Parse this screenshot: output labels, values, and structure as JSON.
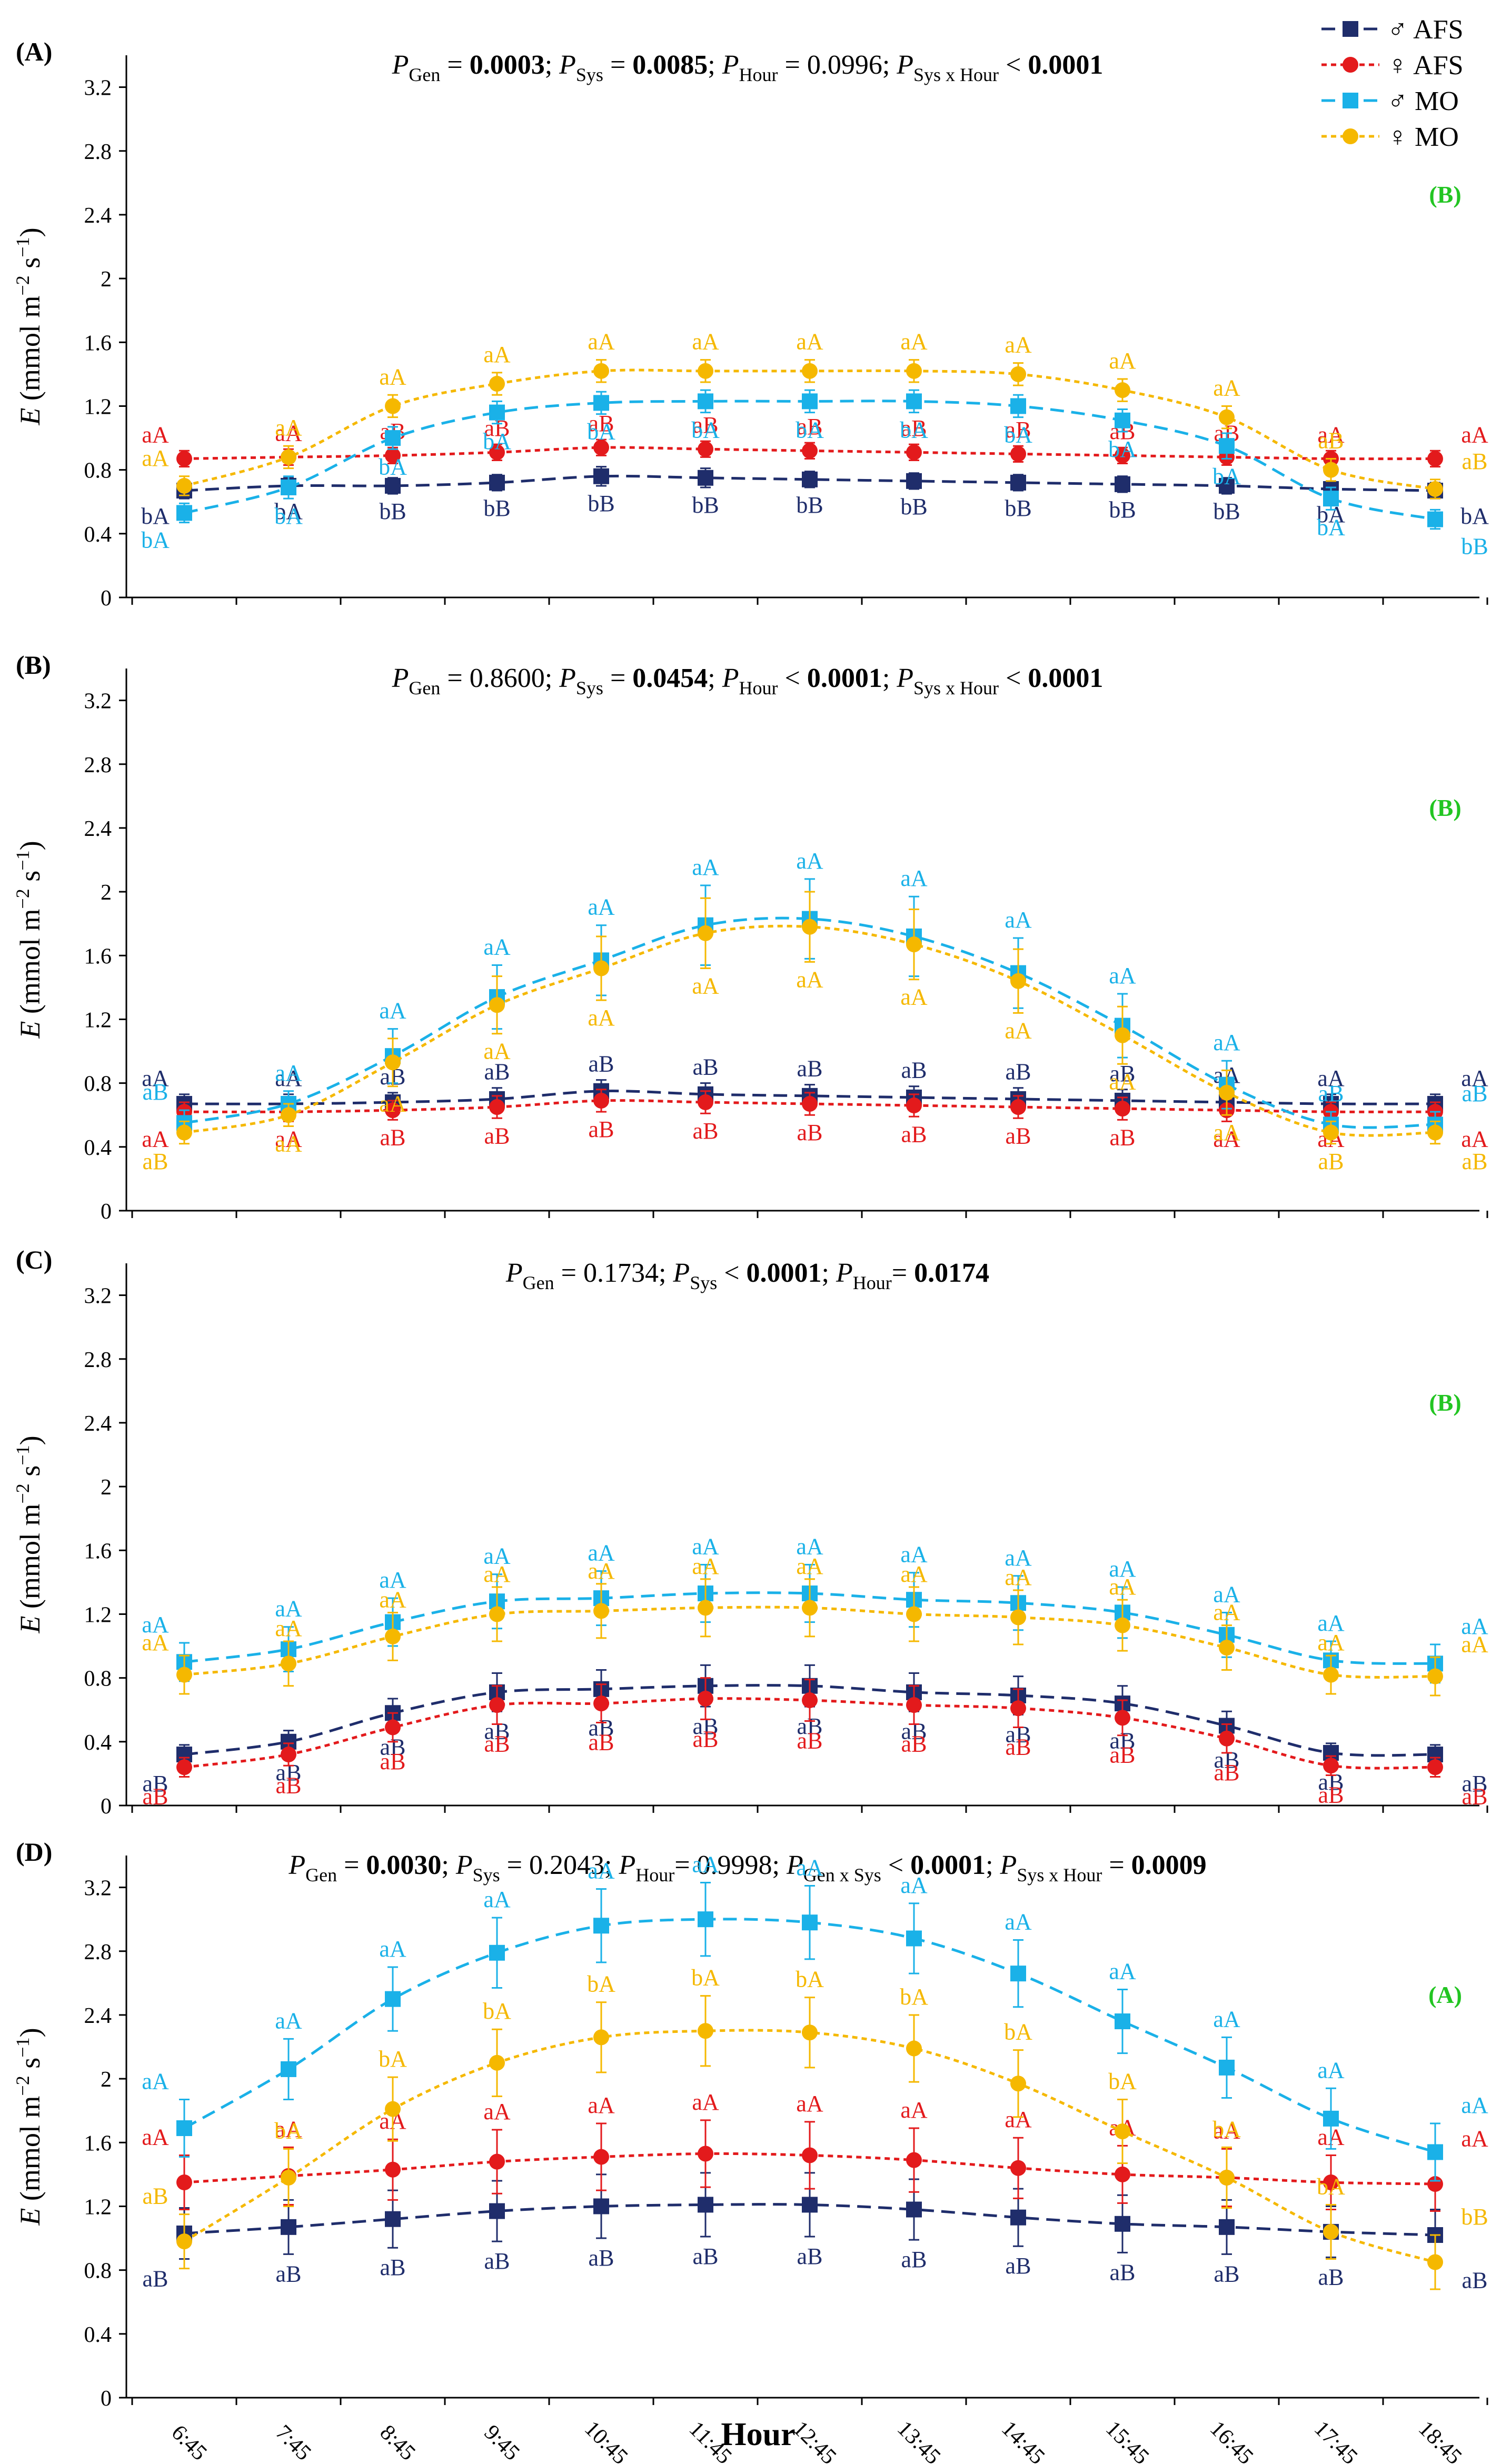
{
  "figure": {
    "xlabel": "Hour",
    "ylabel_main": "E",
    "ylabel_units": "(mmol m",
    "ylabel_exp1": "−2",
    "ylabel_mid": " s",
    "ylabel_exp2": "−1",
    "ylabel_end": ")"
  },
  "colors": {
    "male_afs": "#1f2d6b",
    "female_afs": "#e31a1c",
    "male_mo": "#1ab1e8",
    "female_mo": "#f5b800",
    "badge": "#22c522"
  },
  "legend": [
    {
      "symbol": "♂",
      "label": "AFS"
    },
    {
      "symbol": "♀",
      "label": "AFS"
    },
    {
      "symbol": "♂",
      "label": "MO"
    },
    {
      "symbol": "♀",
      "label": "MO"
    }
  ],
  "chart_data": [
    {
      "type": "line",
      "panel_label": "(A)",
      "badge": "(B)",
      "ylim": [
        0,
        3.4
      ],
      "yticks": [
        "0",
        "0.4",
        "0.8",
        "1.2",
        "1.6",
        "2",
        "2.4",
        "2.8",
        "3.2"
      ],
      "ytick_values": [
        0,
        0.4,
        0.8,
        1.2,
        1.6,
        2.0,
        2.4,
        2.8,
        3.2
      ],
      "categories": [
        "6:45",
        "7:45",
        "8:45",
        "9:45",
        "10:45",
        "11:45",
        "12:45",
        "13:45",
        "14:45",
        "15:45",
        "16:45",
        "17:45",
        "18:45"
      ],
      "stats": [
        {
          "label": "Gen",
          "eq": " = ",
          "value": "0.0003",
          "bold": true
        },
        {
          "label": "Sys",
          "eq": " = ",
          "value": "0.0085",
          "bold": true
        },
        {
          "label": "Hour",
          "eq": " = ",
          "value": "0.0996",
          "bold": false
        },
        {
          "label": "Sys x Hour",
          "eq": " < ",
          "value": "0.0001",
          "bold": true
        }
      ],
      "series": [
        {
          "name": "♂ AFS",
          "values": [
            0.67,
            0.7,
            0.7,
            0.72,
            0.76,
            0.75,
            0.74,
            0.73,
            0.72,
            0.71,
            0.7,
            0.68,
            0.67
          ],
          "error": [
            0.05,
            0.05,
            0.05,
            0.05,
            0.06,
            0.06,
            0.05,
            0.05,
            0.05,
            0.05,
            0.05,
            0.05,
            0.05
          ],
          "labels": [
            "bA",
            "bA",
            "bB",
            "bB",
            "bB",
            "bB",
            "bB",
            "bB",
            "bB",
            "bB",
            "bB",
            "bA",
            "bA"
          ]
        },
        {
          "name": "♀ AFS",
          "values": [
            0.87,
            0.88,
            0.89,
            0.91,
            0.94,
            0.93,
            0.92,
            0.91,
            0.9,
            0.89,
            0.88,
            0.87,
            0.87
          ],
          "error": [
            0.05,
            0.05,
            0.05,
            0.05,
            0.05,
            0.05,
            0.05,
            0.05,
            0.05,
            0.05,
            0.05,
            0.05,
            0.05
          ],
          "labels": [
            "aA",
            "aA",
            "aB",
            "aB",
            "aB",
            "aB",
            "aB",
            "aB",
            "aB",
            "aB",
            "aB",
            "aA",
            "aA"
          ]
        },
        {
          "name": "♂ MO",
          "values": [
            0.53,
            0.69,
            1.0,
            1.16,
            1.22,
            1.23,
            1.23,
            1.23,
            1.2,
            1.11,
            0.95,
            0.62,
            0.49
          ],
          "error": [
            0.06,
            0.07,
            0.07,
            0.07,
            0.07,
            0.07,
            0.07,
            0.07,
            0.07,
            0.07,
            0.08,
            0.07,
            0.06
          ],
          "labels": [
            "bA",
            "bA",
            "bA",
            "bA",
            "bA",
            "bA",
            "bA",
            "bA",
            "bA",
            "bA",
            "bA",
            "bA",
            "bB"
          ]
        },
        {
          "name": "♀ MO",
          "values": [
            0.7,
            0.88,
            1.2,
            1.34,
            1.42,
            1.42,
            1.42,
            1.42,
            1.4,
            1.3,
            1.13,
            0.8,
            0.68
          ],
          "error": [
            0.06,
            0.07,
            0.07,
            0.07,
            0.07,
            0.07,
            0.07,
            0.07,
            0.07,
            0.07,
            0.07,
            0.07,
            0.06
          ],
          "labels": [
            "aA",
            "aA",
            "aA",
            "aA",
            "aA",
            "aA",
            "aA",
            "aA",
            "aA",
            "aA",
            "aA",
            "aB",
            "aB"
          ]
        }
      ]
    },
    {
      "type": "line",
      "panel_label": "(B)",
      "badge": "(B)",
      "ylim": [
        0,
        3.4
      ],
      "yticks": [
        "0",
        "0.4",
        "0.8",
        "1.2",
        "1.6",
        "2",
        "2.4",
        "2.8",
        "3.2"
      ],
      "ytick_values": [
        0,
        0.4,
        0.8,
        1.2,
        1.6,
        2.0,
        2.4,
        2.8,
        3.2
      ],
      "categories": [
        "6:45",
        "7:45",
        "8:45",
        "9:45",
        "10:45",
        "11:45",
        "12:45",
        "13:45",
        "14:45",
        "15:45",
        "16:45",
        "17:45",
        "18:45"
      ],
      "stats": [
        {
          "label": "Gen",
          "eq": " = ",
          "value": "0.8600",
          "bold": false
        },
        {
          "label": "Sys",
          "eq": " = ",
          "value": "0.0454",
          "bold": true
        },
        {
          "label": "Hour",
          "eq": " < ",
          "value": "0.0001",
          "bold": true
        },
        {
          "label": "Sys x Hour",
          "eq": " < ",
          "value": "0.0001",
          "bold": true
        }
      ],
      "series": [
        {
          "name": "♂ AFS",
          "values": [
            0.67,
            0.67,
            0.68,
            0.7,
            0.75,
            0.73,
            0.72,
            0.71,
            0.7,
            0.69,
            0.68,
            0.67,
            0.67
          ],
          "error": [
            0.06,
            0.06,
            0.06,
            0.07,
            0.07,
            0.07,
            0.07,
            0.07,
            0.07,
            0.07,
            0.07,
            0.06,
            0.06
          ],
          "labels": [
            "aA",
            "aA",
            "aB",
            "aB",
            "aB",
            "aB",
            "aB",
            "aB",
            "aB",
            "aB",
            "aA",
            "aA",
            "aA"
          ]
        },
        {
          "name": "♀ AFS",
          "values": [
            0.62,
            0.62,
            0.63,
            0.65,
            0.69,
            0.68,
            0.67,
            0.66,
            0.65,
            0.64,
            0.63,
            0.62,
            0.62
          ],
          "error": [
            0.06,
            0.06,
            0.06,
            0.07,
            0.07,
            0.07,
            0.07,
            0.07,
            0.07,
            0.07,
            0.07,
            0.06,
            0.06
          ],
          "labels": [
            "aA",
            "aA",
            "aB",
            "aB",
            "aB",
            "aB",
            "aB",
            "aB",
            "aB",
            "aB",
            "aA",
            "aA",
            "aA"
          ]
        },
        {
          "name": "♂ MO",
          "values": [
            0.55,
            0.67,
            0.97,
            1.34,
            1.57,
            1.79,
            1.83,
            1.72,
            1.49,
            1.16,
            0.79,
            0.54,
            0.54
          ],
          "error": [
            0.08,
            0.08,
            0.17,
            0.2,
            0.22,
            0.25,
            0.25,
            0.25,
            0.22,
            0.2,
            0.15,
            0.08,
            0.08
          ],
          "labels": [
            "aB",
            "aA",
            "aA",
            "aA",
            "aA",
            "aA",
            "aA",
            "aA",
            "aA",
            "aA",
            "aA",
            "aB",
            "aB"
          ]
        },
        {
          "name": "♀ MO",
          "values": [
            0.49,
            0.6,
            0.93,
            1.29,
            1.52,
            1.74,
            1.78,
            1.67,
            1.44,
            1.1,
            0.74,
            0.49,
            0.49
          ],
          "error": [
            0.07,
            0.07,
            0.15,
            0.18,
            0.2,
            0.22,
            0.22,
            0.22,
            0.2,
            0.18,
            0.14,
            0.07,
            0.07
          ],
          "labels": [
            "aB",
            "aA",
            "aA",
            "aA",
            "aA",
            "aA",
            "aA",
            "aA",
            "aA",
            "aA",
            "aA",
            "aB",
            "aB"
          ]
        }
      ]
    },
    {
      "type": "line",
      "panel_label": "(C)",
      "badge": "(B)",
      "ylim": [
        0,
        3.4
      ],
      "yticks": [
        "0",
        "0.4",
        "0.8",
        "1.2",
        "1.6",
        "2",
        "2.4",
        "2.8",
        "3.2"
      ],
      "ytick_values": [
        0,
        0.4,
        0.8,
        1.2,
        1.6,
        2.0,
        2.4,
        2.8,
        3.2
      ],
      "categories": [
        "6:45",
        "7:45",
        "8:45",
        "9:45",
        "10:45",
        "11:45",
        "12:45",
        "13:45",
        "14:45",
        "15:45",
        "16:45",
        "17:45",
        "18:45"
      ],
      "stats": [
        {
          "label": "Gen",
          "eq": " = ",
          "value": "0.1734",
          "bold": false
        },
        {
          "label": "Sys",
          "eq": " < ",
          "value": "0.0001",
          "bold": true
        },
        {
          "label": "Hour",
          "eq": "= ",
          "value": "0.0174",
          "bold": true
        }
      ],
      "series": [
        {
          "name": "♂ AFS",
          "values": [
            0.32,
            0.4,
            0.58,
            0.71,
            0.73,
            0.75,
            0.75,
            0.71,
            0.69,
            0.64,
            0.5,
            0.33,
            0.32
          ],
          "error": [
            0.06,
            0.07,
            0.09,
            0.12,
            0.12,
            0.13,
            0.13,
            0.12,
            0.12,
            0.11,
            0.09,
            0.06,
            0.06
          ],
          "labels": [
            "aB",
            "aB",
            "aB",
            "aB",
            "aB",
            "aB",
            "aB",
            "aB",
            "aB",
            "aB",
            "aB",
            "aB",
            "aB"
          ]
        },
        {
          "name": "♀ AFS",
          "values": [
            0.24,
            0.32,
            0.49,
            0.63,
            0.64,
            0.67,
            0.66,
            0.63,
            0.61,
            0.55,
            0.42,
            0.25,
            0.24
          ],
          "error": [
            0.06,
            0.07,
            0.09,
            0.12,
            0.12,
            0.13,
            0.13,
            0.12,
            0.12,
            0.11,
            0.09,
            0.06,
            0.06
          ],
          "labels": [
            "aB",
            "aB",
            "aB",
            "aB",
            "aB",
            "aB",
            "aB",
            "aB",
            "aB",
            "aB",
            "aB",
            "aB",
            "aB"
          ]
        },
        {
          "name": "♂ MO",
          "values": [
            0.9,
            0.98,
            1.15,
            1.28,
            1.3,
            1.33,
            1.33,
            1.29,
            1.27,
            1.21,
            1.07,
            0.91,
            0.89
          ],
          "error": [
            0.12,
            0.14,
            0.15,
            0.17,
            0.17,
            0.18,
            0.18,
            0.17,
            0.17,
            0.16,
            0.14,
            0.12,
            0.12
          ],
          "labels": [
            "aA",
            "aA",
            "aA",
            "aA",
            "aA",
            "aA",
            "aA",
            "aA",
            "aA",
            "aA",
            "aA",
            "aA",
            "aA"
          ]
        },
        {
          "name": "♀ MO",
          "values": [
            0.82,
            0.89,
            1.06,
            1.2,
            1.22,
            1.24,
            1.24,
            1.2,
            1.18,
            1.13,
            0.99,
            0.82,
            0.81
          ],
          "error": [
            0.12,
            0.14,
            0.15,
            0.17,
            0.17,
            0.18,
            0.18,
            0.17,
            0.17,
            0.16,
            0.14,
            0.12,
            0.12
          ],
          "labels": [
            "aA",
            "aA",
            "aA",
            "aA",
            "aA",
            "aA",
            "aA",
            "aA",
            "aA",
            "aA",
            "aA",
            "aA",
            "aA"
          ]
        }
      ]
    },
    {
      "type": "line",
      "panel_label": "(D)",
      "badge": "(A)",
      "ylim": [
        0,
        3.4
      ],
      "yticks": [
        "0",
        "0.4",
        "0.8",
        "1.2",
        "1.6",
        "2",
        "2.4",
        "2.8",
        "3.2"
      ],
      "ytick_values": [
        0,
        0.4,
        0.8,
        1.2,
        1.6,
        2.0,
        2.4,
        2.8,
        3.2
      ],
      "categories": [
        "6:45",
        "7:45",
        "8:45",
        "9:45",
        "10:45",
        "11:45",
        "12:45",
        "13:45",
        "14:45",
        "15:45",
        "16:45",
        "17:45",
        "18:45"
      ],
      "stats": [
        {
          "label": "Gen",
          "eq": " = ",
          "value": "0.0030",
          "bold": true
        },
        {
          "label": "Sys",
          "eq": " = ",
          "value": "0.2043",
          "bold": false
        },
        {
          "label": "Hour",
          "eq": "= ",
          "value": "0.9998",
          "bold": false
        },
        {
          "label": "Gen x Sys",
          "eq": " < ",
          "value": "0.0001",
          "bold": true
        },
        {
          "label": "Sys x Hour",
          "eq": " = ",
          "value": "0.0009",
          "bold": true
        }
      ],
      "series": [
        {
          "name": "♂ AFS",
          "values": [
            1.03,
            1.07,
            1.12,
            1.17,
            1.2,
            1.21,
            1.21,
            1.18,
            1.13,
            1.09,
            1.07,
            1.04,
            1.02
          ],
          "error": [
            0.16,
            0.17,
            0.18,
            0.19,
            0.2,
            0.2,
            0.2,
            0.19,
            0.18,
            0.18,
            0.17,
            0.16,
            0.16
          ],
          "labels": [
            "aB",
            "aB",
            "aB",
            "aB",
            "aB",
            "aB",
            "aB",
            "aB",
            "aB",
            "aB",
            "aB",
            "aB",
            "aB"
          ]
        },
        {
          "name": "♀ AFS",
          "values": [
            1.35,
            1.39,
            1.43,
            1.48,
            1.51,
            1.53,
            1.52,
            1.49,
            1.44,
            1.4,
            1.38,
            1.35,
            1.34
          ],
          "error": [
            0.17,
            0.18,
            0.19,
            0.2,
            0.21,
            0.21,
            0.21,
            0.2,
            0.19,
            0.18,
            0.18,
            0.17,
            0.17
          ],
          "labels": [
            "aA",
            "aA",
            "aA",
            "aA",
            "aA",
            "aA",
            "aA",
            "aA",
            "aA",
            "aA",
            "aA",
            "aA",
            "aA"
          ]
        },
        {
          "name": "♂ MO",
          "values": [
            1.69,
            2.06,
            2.5,
            2.79,
            2.96,
            3.0,
            2.98,
            2.88,
            2.66,
            2.36,
            2.07,
            1.75,
            1.54
          ],
          "error": [
            0.18,
            0.19,
            0.2,
            0.22,
            0.23,
            0.23,
            0.23,
            0.22,
            0.21,
            0.2,
            0.19,
            0.19,
            0.18
          ],
          "labels": [
            "aA",
            "aA",
            "aA",
            "aA",
            "aA",
            "aA",
            "aA",
            "aA",
            "aA",
            "aA",
            "aA",
            "aA",
            "aA"
          ]
        },
        {
          "name": "♀ MO",
          "values": [
            0.98,
            1.38,
            1.81,
            2.1,
            2.26,
            2.3,
            2.29,
            2.19,
            1.97,
            1.67,
            1.38,
            1.04,
            0.85
          ],
          "error": [
            0.17,
            0.18,
            0.2,
            0.21,
            0.22,
            0.22,
            0.22,
            0.21,
            0.21,
            0.2,
            0.19,
            0.17,
            0.17
          ],
          "labels": [
            "aB",
            "bA",
            "bA",
            "bA",
            "bA",
            "bA",
            "bA",
            "bA",
            "bA",
            "bA",
            "bA",
            "bA",
            "bB"
          ]
        }
      ]
    }
  ]
}
